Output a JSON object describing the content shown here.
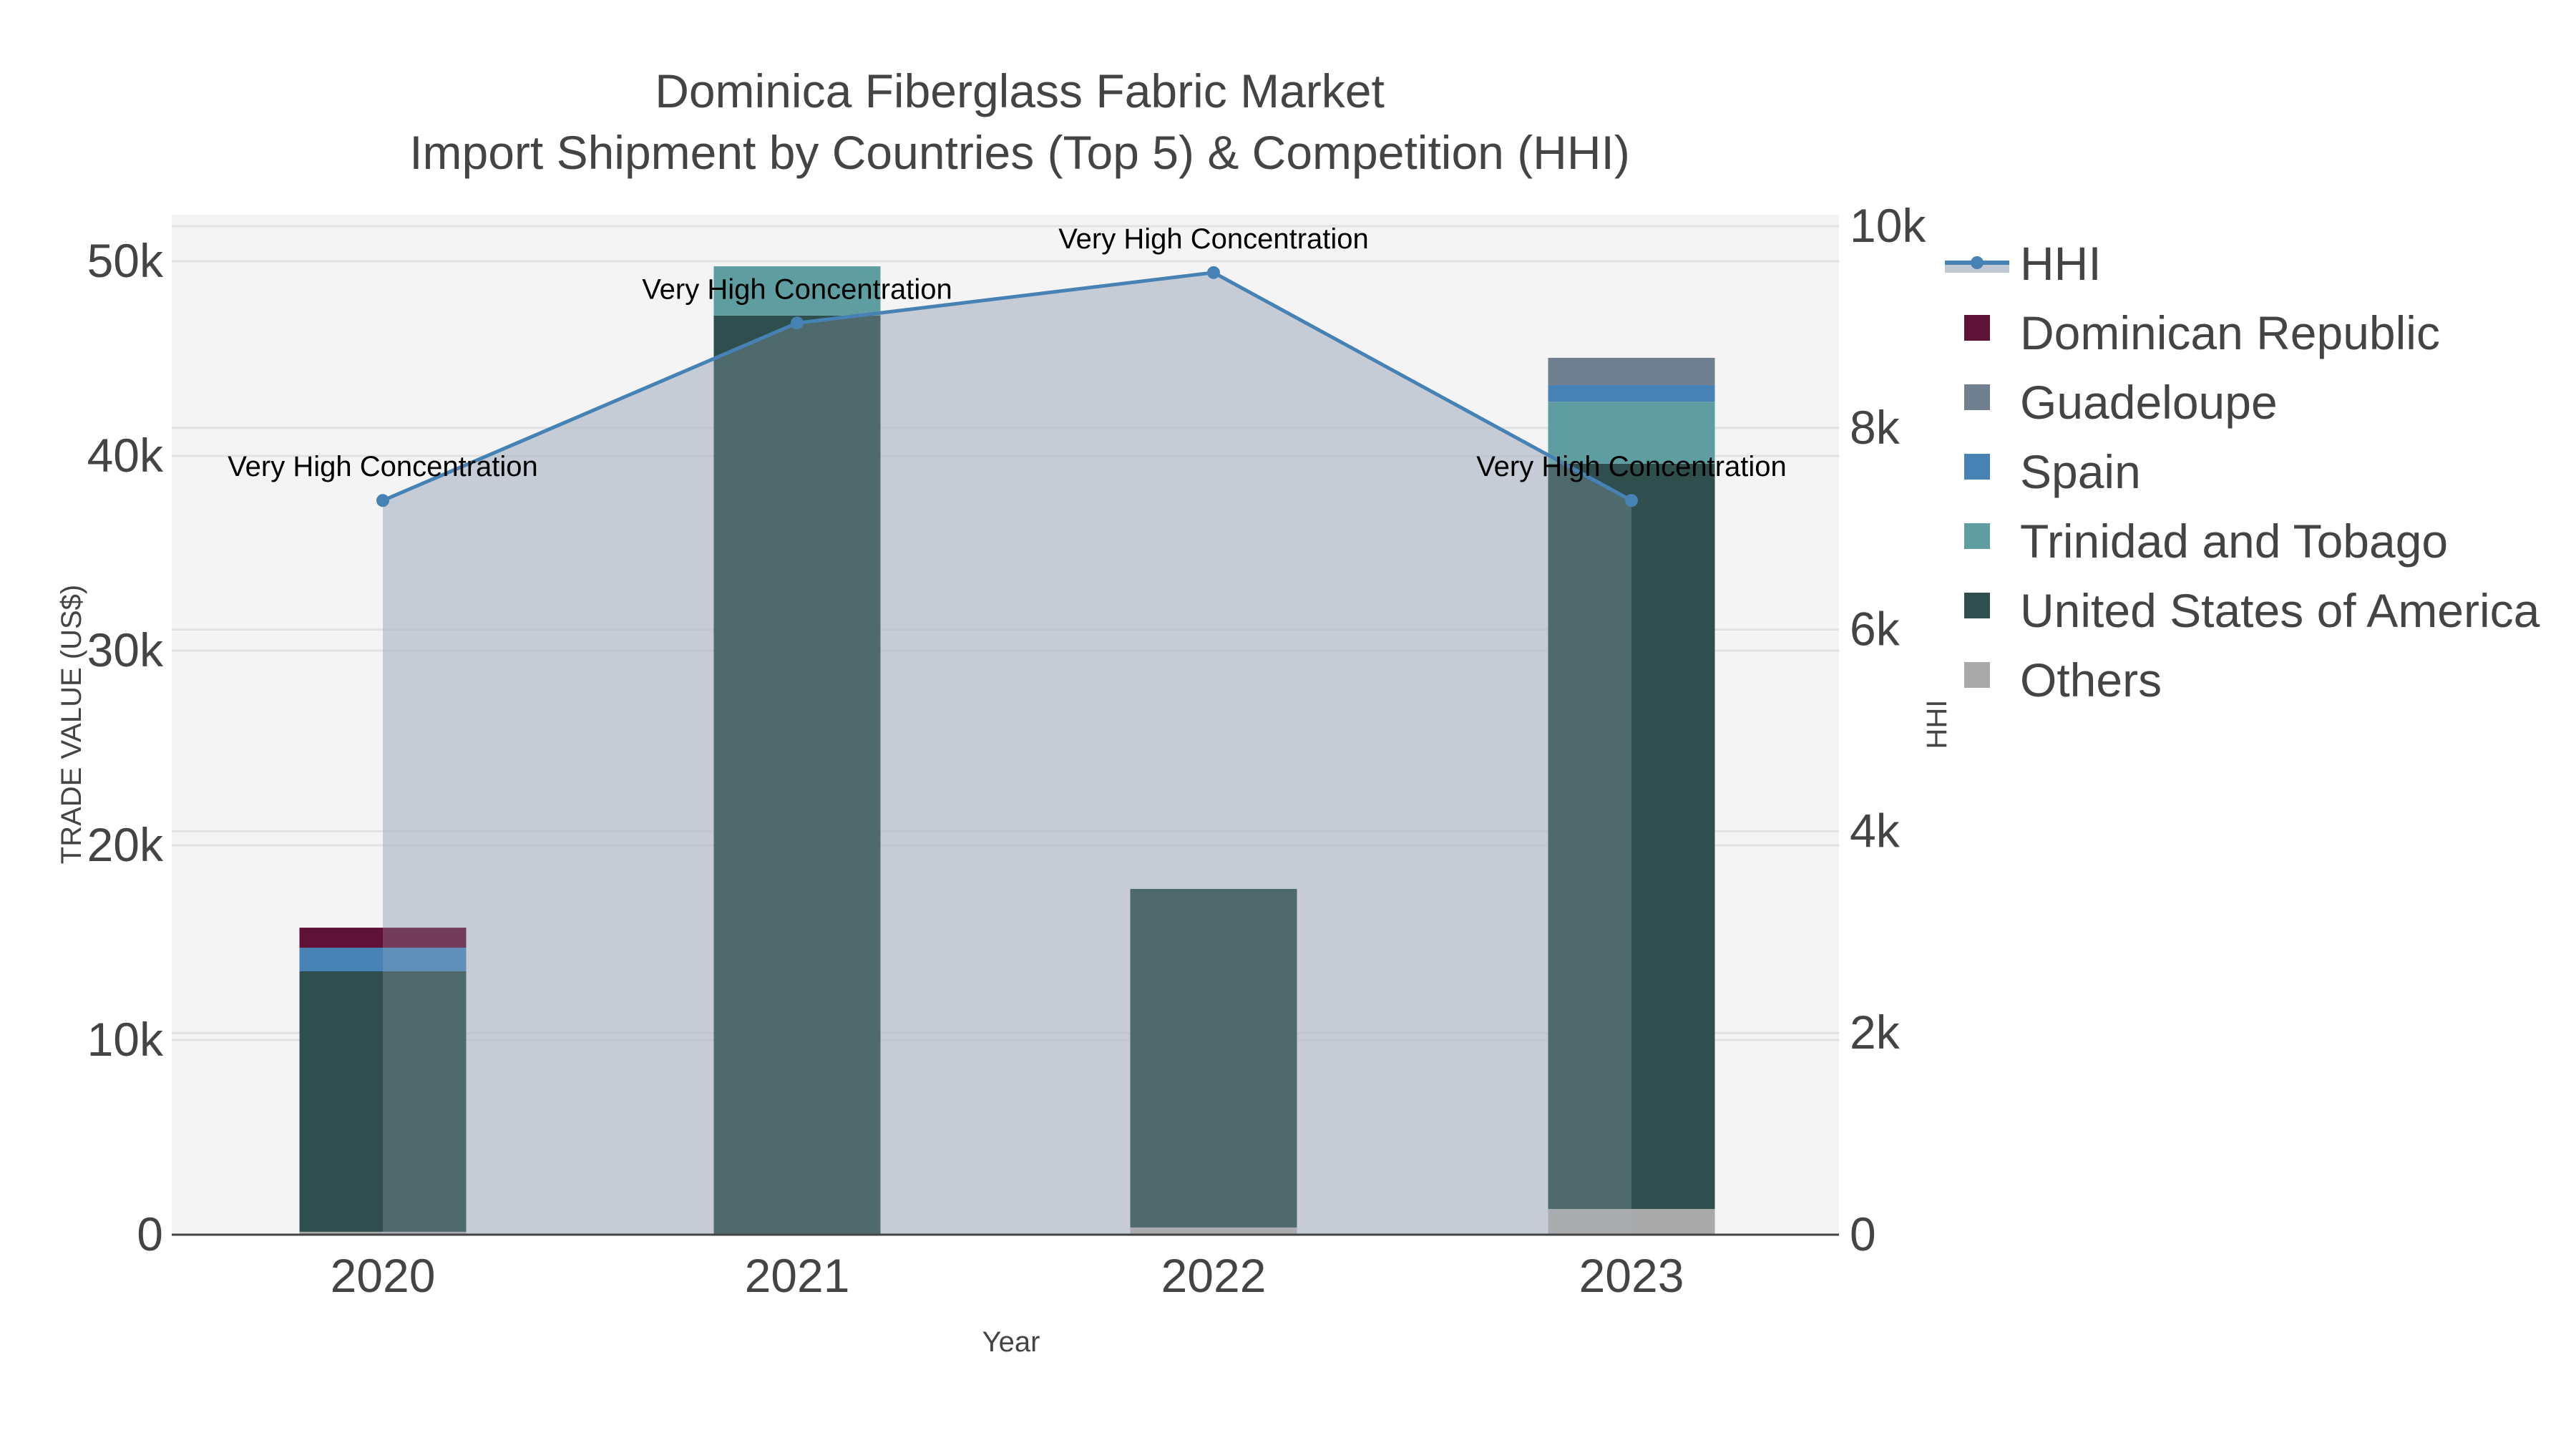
{
  "title": {
    "line1": "Dominica Fiberglass Fabric Market",
    "line2": "Import Shipment by Countries (Top 5) & Competition (HHI)"
  },
  "axes": {
    "x_title": "Year",
    "y_left_title": "TRADE VALUE (US$)",
    "y_right_title": "HHI",
    "y_left_ticks": [
      "0",
      "10k",
      "20k",
      "30k",
      "40k",
      "50k"
    ],
    "y_right_ticks": [
      "0",
      "2k",
      "4k",
      "6k",
      "8k",
      "10k"
    ],
    "x_ticks": [
      "2020",
      "2021",
      "2022",
      "2023"
    ]
  },
  "legend": [
    {
      "name": "HHI",
      "type": "line",
      "color": "#4682B4"
    },
    {
      "name": "Dominican Republic",
      "type": "bar",
      "color": "#5E1236"
    },
    {
      "name": "Guadeloupe",
      "type": "bar",
      "color": "#708090"
    },
    {
      "name": "Spain",
      "type": "bar",
      "color": "#4682B4"
    },
    {
      "name": "Trinidad and Tobago",
      "type": "bar",
      "color": "#5F9EA0"
    },
    {
      "name": "United States of America",
      "type": "bar",
      "color": "#2F4F4F"
    },
    {
      "name": "Others",
      "type": "bar",
      "color": "#A9A9A9"
    }
  ],
  "colors": {
    "plot_bg": "#F4F4F4",
    "grid": "#E2E2E2",
    "hhi_line": "#4682B4",
    "hhi_fill": "rgba(176,186,200,0.6)",
    "axis_line": "#444444"
  },
  "chart_data": {
    "type": "bar",
    "subtype": "stacked bar with secondary-axis line/area",
    "title": "Dominica Fiberglass Fabric Market — Import Shipment by Countries (Top 5) & Competition (HHI)",
    "xlabel": "Year",
    "ylabel": "TRADE VALUE (US$)",
    "y2label": "HHI",
    "categories": [
      "2020",
      "2021",
      "2022",
      "2023"
    ],
    "ylim": [
      0,
      52000
    ],
    "y2lim": [
      0,
      10000
    ],
    "grid": true,
    "legend_position": "right",
    "series": [
      {
        "name": "Others",
        "color": "#A9A9A9",
        "values": [
          150,
          0,
          370,
          1320
        ]
      },
      {
        "name": "United States of America",
        "color": "#2F4F4F",
        "values": [
          13380,
          47210,
          17390,
          38280
        ]
      },
      {
        "name": "Trinidad and Tobago",
        "color": "#5F9EA0",
        "values": [
          0,
          2530,
          0,
          3190
        ]
      },
      {
        "name": "Spain",
        "color": "#4682B4",
        "values": [
          1210,
          0,
          0,
          850
        ]
      },
      {
        "name": "Guadeloupe",
        "color": "#708090",
        "values": [
          0,
          0,
          0,
          1400
        ]
      },
      {
        "name": "Dominican Republic",
        "color": "#5E1236",
        "values": [
          1030,
          0,
          0,
          0
        ]
      }
    ],
    "line_series": {
      "name": "HHI",
      "axis": "y2",
      "color": "#4682B4",
      "fill": "tozeroy",
      "values": [
        7280,
        9040,
        9540,
        7280
      ]
    },
    "annotations": [
      {
        "x": "2020",
        "text": "Very High Concentration"
      },
      {
        "x": "2021",
        "text": "Very High Concentration"
      },
      {
        "x": "2022",
        "text": "Very High Concentration"
      },
      {
        "x": "2023",
        "text": "Very High Concentration"
      }
    ]
  }
}
